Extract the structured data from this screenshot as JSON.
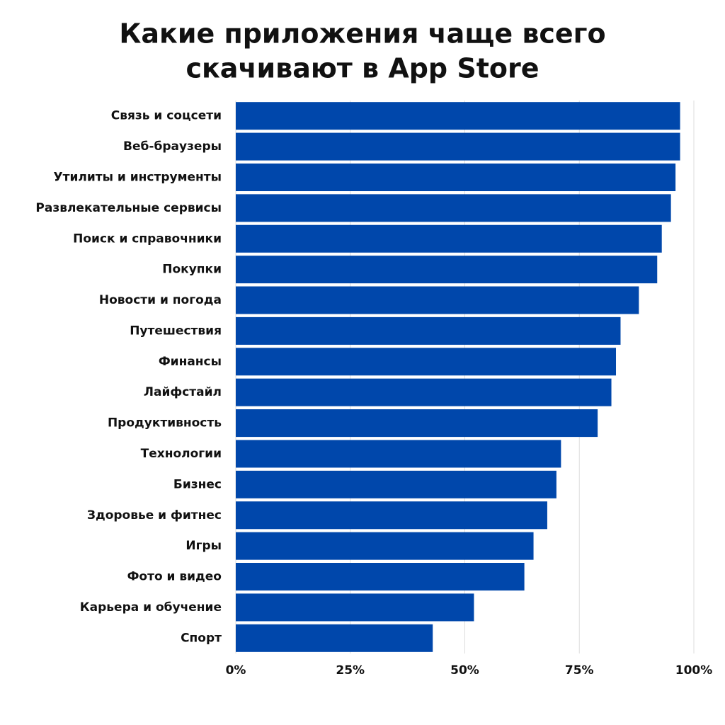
{
  "chart_data": {
    "type": "bar",
    "orientation": "horizontal",
    "title": [
      "Какие приложения чаще всего",
      "скачивают в App Store"
    ],
    "categories": [
      "Связь и соцсети",
      "Веб-браузеры",
      "Утилиты и инструменты",
      "Развлекательные сервисы",
      "Поиск и справочники",
      "Покупки",
      "Новости и погода",
      "Путешествия",
      "Финансы",
      "Лайфстайл",
      "Продуктивность",
      "Технологии",
      "Бизнес",
      "Здоровье и фитнес",
      "Игры",
      "Фото и видео",
      "Карьера и обучение",
      "Спорт"
    ],
    "values": [
      97,
      97,
      96,
      95,
      93,
      92,
      88,
      84,
      83,
      82,
      79,
      71,
      70,
      68,
      65,
      63,
      52,
      43
    ],
    "color": "#0047ab",
    "xlim": [
      0,
      100
    ],
    "xticks": [
      {
        "value": 0,
        "label": "0%"
      },
      {
        "value": 25,
        "label": "25%"
      },
      {
        "value": 50,
        "label": "50%"
      },
      {
        "value": 75,
        "label": "75%"
      },
      {
        "value": 100,
        "label": "100%"
      }
    ],
    "grid": true
  }
}
